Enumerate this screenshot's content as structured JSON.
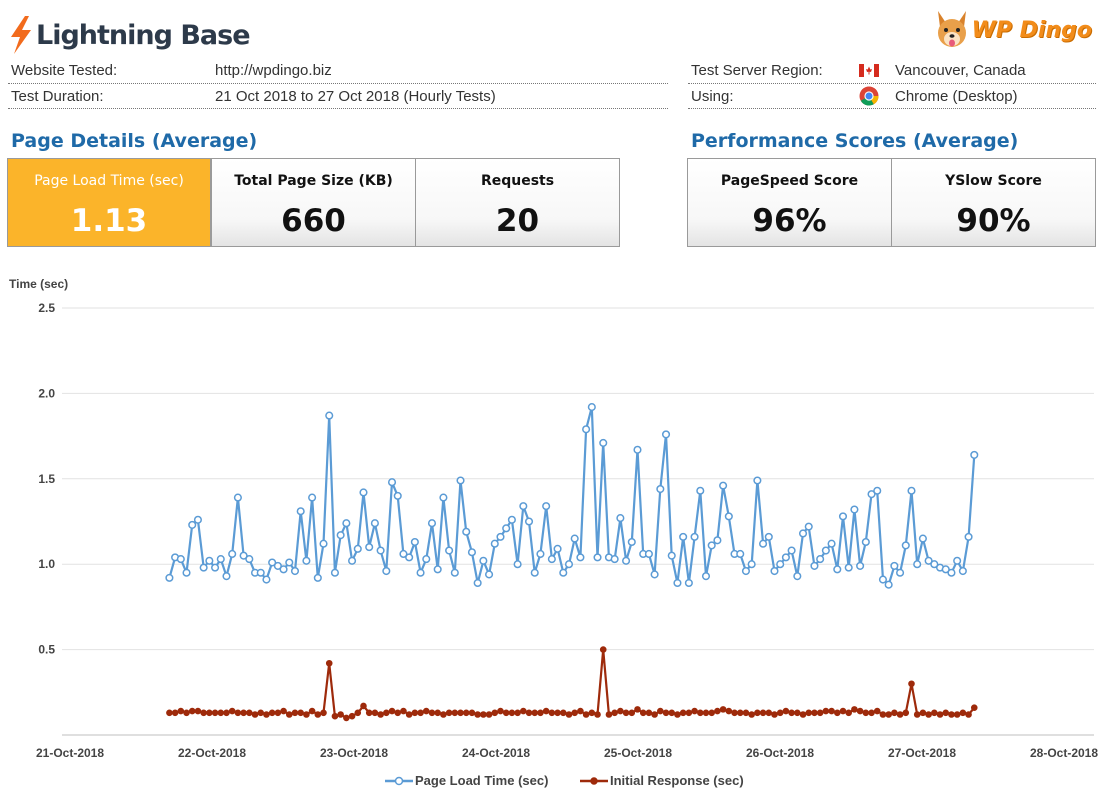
{
  "header": {
    "left_logo_text": "Lightning Base",
    "right_logo_text": "WP Dingo"
  },
  "info": {
    "website_label": "Website Tested:",
    "website_value": "http://wpdingo.biz",
    "duration_label": "Test Duration:",
    "duration_value": "21 Oct 2018 to 27 Oct 2018 (Hourly Tests)",
    "region_label": "Test Server Region:",
    "region_value": "Vancouver, Canada",
    "using_label": "Using:",
    "using_value": "Chrome (Desktop)"
  },
  "sections": {
    "page_details_title": "Page Details (Average)",
    "performance_title": "Performance Scores (Average)"
  },
  "metrics": {
    "load_time_label": "Page Load Time (sec)",
    "load_time_value": "1.13",
    "page_size_label": "Total Page Size (KB)",
    "page_size_value": "660",
    "requests_label": "Requests",
    "requests_value": "20",
    "pagespeed_label": "PageSpeed Score",
    "pagespeed_value": "96%",
    "yslow_label": "YSlow Score",
    "yslow_value": "90%"
  },
  "colors": {
    "accent": "#fbb42a",
    "title_blue": "#1f6aa8",
    "series_blue": "#5b9bd5",
    "series_red": "#9e2a0b"
  },
  "chart_data": {
    "type": "line",
    "ylabel": "Time (sec)",
    "ylim": [
      0,
      2.5
    ],
    "yticks": [
      0.5,
      1.0,
      1.5,
      2.0,
      2.5
    ],
    "ytick_labels": [
      "0.5",
      "1.0",
      "1.5",
      "2.0",
      "2.5"
    ],
    "xlim": [
      0,
      7
    ],
    "xticks": [
      0,
      1,
      2,
      3,
      4,
      5,
      6,
      7
    ],
    "xtick_labels": [
      "21-Oct-2018",
      "22-Oct-2018",
      "23-Oct-2018",
      "24-Oct-2018",
      "25-Oct-2018",
      "26-Oct-2018",
      "27-Oct-2018",
      "28-Oct-2018"
    ],
    "x_start": 0.7,
    "x_step": 0.0402,
    "grid": true,
    "legend": "bottom",
    "series": [
      {
        "name": "Page Load Time (sec)",
        "values": [
          0.92,
          1.04,
          1.03,
          0.95,
          1.23,
          1.26,
          0.98,
          1.02,
          0.98,
          1.03,
          0.93,
          1.06,
          1.39,
          1.05,
          1.03,
          0.95,
          0.95,
          0.91,
          1.01,
          0.99,
          0.97,
          1.01,
          0.96,
          1.31,
          1.02,
          1.39,
          0.92,
          1.12,
          1.87,
          0.95,
          1.17,
          1.24,
          1.02,
          1.09,
          1.42,
          1.1,
          1.24,
          1.08,
          0.96,
          1.48,
          1.4,
          1.06,
          1.04,
          1.13,
          0.95,
          1.03,
          1.24,
          0.97,
          1.39,
          1.08,
          0.95,
          1.49,
          1.19,
          1.07,
          0.89,
          1.02,
          0.94,
          1.12,
          1.16,
          1.21,
          1.26,
          1.0,
          1.34,
          1.25,
          0.95,
          1.06,
          1.34,
          1.03,
          1.09,
          0.95,
          1.0,
          1.15,
          1.04,
          1.79,
          1.92,
          1.04,
          1.71,
          1.04,
          1.03,
          1.27,
          1.02,
          1.13,
          1.67,
          1.06,
          1.06,
          0.94,
          1.44,
          1.76,
          1.05,
          0.89,
          1.16,
          0.89,
          1.16,
          1.43,
          0.93,
          1.11,
          1.14,
          1.46,
          1.28,
          1.06,
          1.06,
          0.96,
          1.0,
          1.49,
          1.12,
          1.16,
          0.96,
          1.0,
          1.04,
          1.08,
          0.93,
          1.18,
          1.22,
          0.99,
          1.03,
          1.08,
          1.12,
          0.97,
          1.28,
          0.98,
          1.32,
          0.99,
          1.13,
          1.41,
          1.43,
          0.91,
          0.88,
          0.99,
          0.95,
          1.11,
          1.43,
          1.0,
          1.15,
          1.02,
          1.0,
          0.98,
          0.97,
          0.95,
          1.02,
          0.96,
          1.16,
          1.64
        ]
      },
      {
        "name": "Initial Response (sec)",
        "values": [
          0.13,
          0.13,
          0.14,
          0.13,
          0.14,
          0.14,
          0.13,
          0.13,
          0.13,
          0.13,
          0.13,
          0.14,
          0.13,
          0.13,
          0.13,
          0.12,
          0.13,
          0.12,
          0.13,
          0.13,
          0.14,
          0.12,
          0.13,
          0.13,
          0.12,
          0.14,
          0.12,
          0.13,
          0.42,
          0.11,
          0.12,
          0.1,
          0.11,
          0.13,
          0.17,
          0.13,
          0.13,
          0.12,
          0.13,
          0.14,
          0.13,
          0.14,
          0.12,
          0.13,
          0.13,
          0.14,
          0.13,
          0.13,
          0.12,
          0.13,
          0.13,
          0.13,
          0.13,
          0.13,
          0.12,
          0.12,
          0.12,
          0.13,
          0.14,
          0.13,
          0.13,
          0.13,
          0.14,
          0.13,
          0.13,
          0.13,
          0.14,
          0.13,
          0.13,
          0.13,
          0.12,
          0.13,
          0.14,
          0.12,
          0.13,
          0.12,
          0.5,
          0.12,
          0.13,
          0.14,
          0.13,
          0.13,
          0.15,
          0.13,
          0.13,
          0.12,
          0.14,
          0.13,
          0.13,
          0.12,
          0.13,
          0.13,
          0.14,
          0.13,
          0.13,
          0.13,
          0.14,
          0.15,
          0.14,
          0.13,
          0.13,
          0.13,
          0.12,
          0.13,
          0.13,
          0.13,
          0.12,
          0.13,
          0.14,
          0.13,
          0.13,
          0.12,
          0.13,
          0.13,
          0.13,
          0.14,
          0.14,
          0.13,
          0.14,
          0.13,
          0.15,
          0.14,
          0.13,
          0.13,
          0.14,
          0.12,
          0.12,
          0.13,
          0.12,
          0.13,
          0.3,
          0.12,
          0.13,
          0.12,
          0.13,
          0.12,
          0.13,
          0.12,
          0.12,
          0.13,
          0.12,
          0.16
        ]
      }
    ]
  }
}
